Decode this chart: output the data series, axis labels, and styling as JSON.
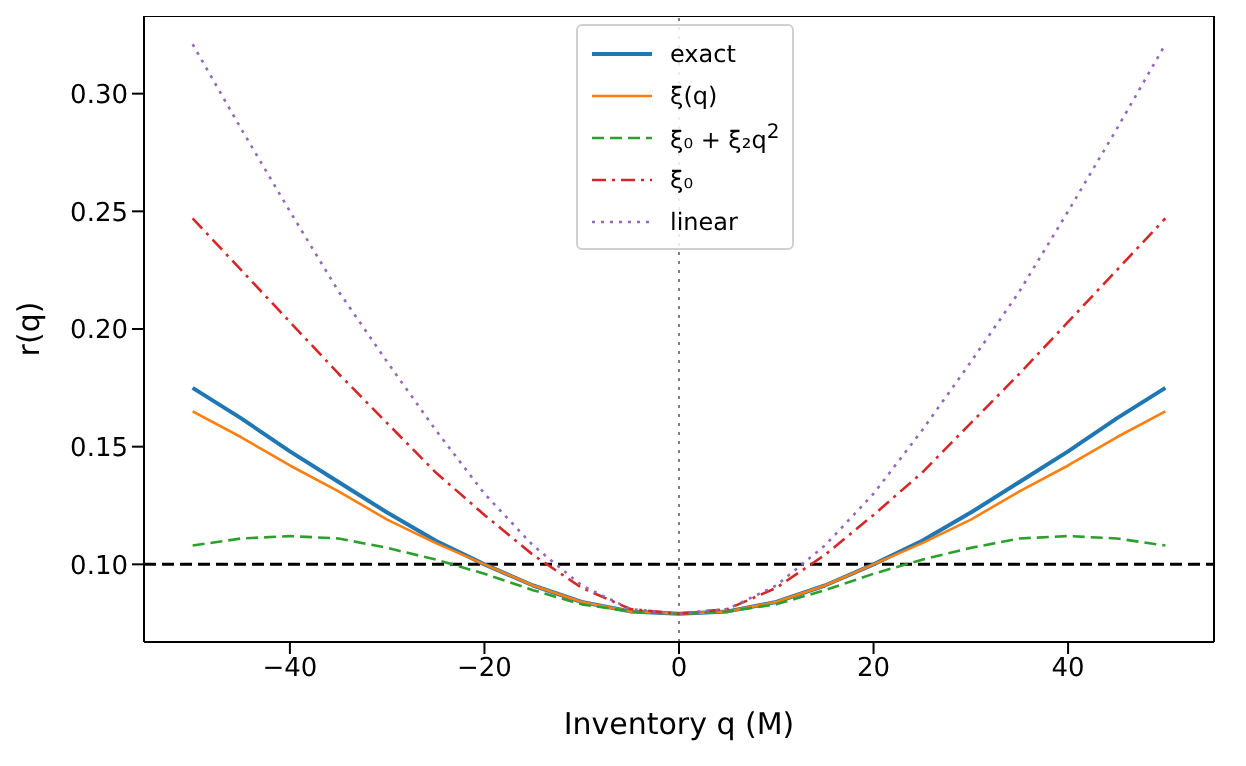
{
  "chart_data": {
    "type": "line",
    "xlabel": "Inventory q (M)",
    "ylabel": "r(q)",
    "x": [
      -50,
      -45,
      -40,
      -35,
      -30,
      -25,
      -20,
      -15,
      -10,
      -5,
      0,
      5,
      10,
      15,
      20,
      25,
      30,
      35,
      40,
      45,
      50
    ],
    "series": [
      {
        "name": "exact",
        "color": "#1f77b4",
        "line_style": "solid",
        "values": [
          0.175,
          0.162,
          0.148,
          0.135,
          0.122,
          0.11,
          0.1,
          0.091,
          0.084,
          0.08,
          0.079,
          0.08,
          0.084,
          0.091,
          0.1,
          0.11,
          0.122,
          0.135,
          0.148,
          0.162,
          0.175
        ]
      },
      {
        "name": "ξ(q)",
        "color": "#ff7f0e",
        "line_style": "solid",
        "values": [
          0.165,
          0.154,
          0.142,
          0.131,
          0.119,
          0.109,
          0.1,
          0.091,
          0.084,
          0.08,
          0.079,
          0.08,
          0.084,
          0.091,
          0.1,
          0.109,
          0.119,
          0.131,
          0.142,
          0.154,
          0.165
        ]
      },
      {
        "name": "ξ₀ + ξ₂q$^{2}$",
        "color": "#2ca02c",
        "line_style": "dashed",
        "values": [
          0.108,
          0.111,
          0.112,
          0.111,
          0.107,
          0.102,
          0.096,
          0.089,
          0.083,
          0.08,
          0.079,
          0.08,
          0.083,
          0.089,
          0.096,
          0.102,
          0.107,
          0.111,
          0.112,
          0.111,
          0.108
        ]
      },
      {
        "name": "ξ₀",
        "color": "#d62728",
        "line_style": "dashdot",
        "values": [
          0.247,
          0.225,
          0.203,
          0.181,
          0.16,
          0.139,
          0.121,
          0.104,
          0.09,
          0.081,
          0.079,
          0.081,
          0.09,
          0.104,
          0.121,
          0.139,
          0.16,
          0.181,
          0.203,
          0.225,
          0.247
        ]
      },
      {
        "name": "linear",
        "color": "#9467bd",
        "line_style": "dotted",
        "values": [
          0.321,
          0.285,
          0.25,
          0.216,
          0.186,
          0.157,
          0.13,
          0.108,
          0.091,
          0.081,
          0.079,
          0.081,
          0.091,
          0.108,
          0.13,
          0.157,
          0.186,
          0.216,
          0.25,
          0.285,
          0.321
        ]
      }
    ],
    "xlim": [
      -55,
      55
    ],
    "xticks": [
      -40,
      -20,
      0,
      20,
      40
    ],
    "ylim": [
      0.067,
      0.333
    ],
    "yticks": [
      {
        "value": 0.1,
        "label": "0.10"
      },
      {
        "value": 0.15,
        "label": "0.15"
      },
      {
        "value": 0.2,
        "label": "0.20"
      },
      {
        "value": 0.25,
        "label": "0.25"
      },
      {
        "value": 0.3,
        "label": "0.30"
      }
    ],
    "ref_lines": [
      {
        "axis": "y",
        "value": 0.1,
        "color": "#000000",
        "line_style": "dashed"
      },
      {
        "axis": "x",
        "value": 0,
        "color": "#808080",
        "line_style": "dotted"
      }
    ],
    "marker": "none",
    "grid": false,
    "legend": "top"
  }
}
